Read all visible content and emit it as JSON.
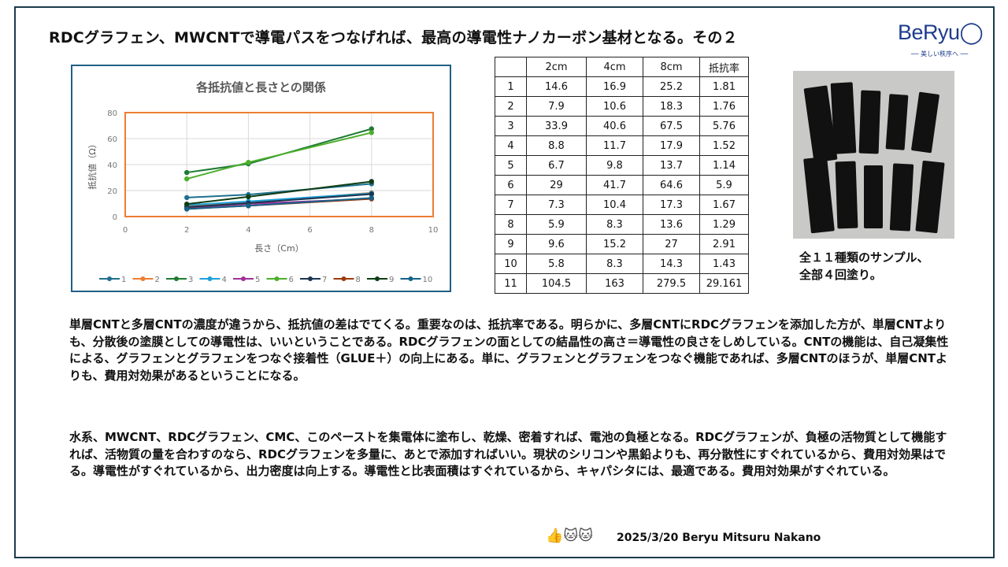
{
  "title": "RDCグラフェン、MWCNTで導電パスをつなげれば、最高の導電性ナノカーボン基材となる。その２",
  "logo": {
    "text": "BeRyu◯",
    "tagline": "── 美しい秩序へ ──"
  },
  "chart_data": {
    "type": "line",
    "title": "各抵抗値と長さとの関係",
    "xlabel": "長さ（Cm）",
    "ylabel": "抵抗値（Ω）",
    "xlim": [
      0,
      10
    ],
    "ylim": [
      0,
      80
    ],
    "xticks": [
      0,
      2,
      4,
      6,
      8,
      10
    ],
    "yticks": [
      0,
      20,
      40,
      60,
      80
    ],
    "grid": true,
    "legend": "bottom",
    "x": [
      2,
      4,
      8
    ],
    "series": [
      {
        "name": "1",
        "values": [
          14.6,
          16.9,
          25.2
        ],
        "color": "#1f6f8f"
      },
      {
        "name": "2",
        "values": [
          7.9,
          10.6,
          18.3
        ],
        "color": "#ed7d31"
      },
      {
        "name": "3",
        "values": [
          33.9,
          40.6,
          67.5
        ],
        "color": "#1e7b33"
      },
      {
        "name": "4",
        "values": [
          8.8,
          11.7,
          17.9
        ],
        "color": "#1ea0d8"
      },
      {
        "name": "5",
        "values": [
          6.7,
          9.8,
          13.7
        ],
        "color": "#a0309a"
      },
      {
        "name": "6",
        "values": [
          29,
          41.7,
          64.6
        ],
        "color": "#4caf2a"
      },
      {
        "name": "7",
        "values": [
          7.3,
          10.4,
          17.3
        ],
        "color": "#1a3550"
      },
      {
        "name": "8",
        "values": [
          5.9,
          8.3,
          13.6
        ],
        "color": "#9b3b0c"
      },
      {
        "name": "9",
        "values": [
          9.6,
          15.2,
          27
        ],
        "color": "#0f3d14"
      },
      {
        "name": "10",
        "values": [
          5.8,
          8.3,
          14.3
        ],
        "color": "#15628a"
      }
    ]
  },
  "table": {
    "headers": [
      "",
      "2cm",
      "4cm",
      "8cm",
      "抵抗率"
    ],
    "rows": [
      [
        "1",
        "14.6",
        "16.9",
        "25.2",
        "1.81"
      ],
      [
        "2",
        "7.9",
        "10.6",
        "18.3",
        "1.76"
      ],
      [
        "3",
        "33.9",
        "40.6",
        "67.5",
        "5.76"
      ],
      [
        "4",
        "8.8",
        "11.7",
        "17.9",
        "1.52"
      ],
      [
        "5",
        "6.7",
        "9.8",
        "13.7",
        "1.14"
      ],
      [
        "6",
        "29",
        "41.7",
        "64.6",
        "5.9"
      ],
      [
        "7",
        "7.3",
        "10.4",
        "17.3",
        "1.67"
      ],
      [
        "8",
        "5.9",
        "8.3",
        "13.6",
        "1.29"
      ],
      [
        "9",
        "9.6",
        "15.2",
        "27",
        "2.91"
      ],
      [
        "10",
        "5.8",
        "8.3",
        "14.3",
        "1.43"
      ],
      [
        "11",
        "104.5",
        "163",
        "279.5",
        "29.161"
      ]
    ]
  },
  "caption": {
    "line1": "全１１種類のサンプル、",
    "line2": "全部４回塗り。"
  },
  "paragraph1": "単層CNTと多層CNTの濃度が違うから、抵抗値の差はでてくる。重要なのは、抵抗率である。明らかに、多層CNTにRDCグラフェンを添加した方が、単層CNTよりも、分散後の塗膜としての導電性は、いいということである。RDCグラフェンの面としての結晶性の高さ＝導電性の良さをしめしている。CNTの機能は、自己凝集性による、グラフェンとグラフェンをつなぐ接着性（GLUE＋）の向上にある。単に、グラフェンとグラフェンをつなぐ機能であれば、多層CNTのほうが、単層CNTよりも、費用対効果があるということになる。",
  "paragraph2": "水系、MWCNT、RDCグラフェン、CMC、このペーストを集電体に塗布し、乾燥、密着すれば、電池の負極となる。RDCグラフェンが、負極の活物質として機能すれば、活物質の量を合わすのなら、RDCグラフェンを多量に、あとで添加すればいい。現状のシリコンや黒鉛よりも、再分散性にすぐれているから、費用対効果はでる。導電性がすぐれているから、出力密度は向上する。導電性と比表面積はすぐれているから、キャパシタには、最適である。費用対効果がすぐれている。",
  "footer": "2025/3/20 Beryu Mitsuru Nakano"
}
